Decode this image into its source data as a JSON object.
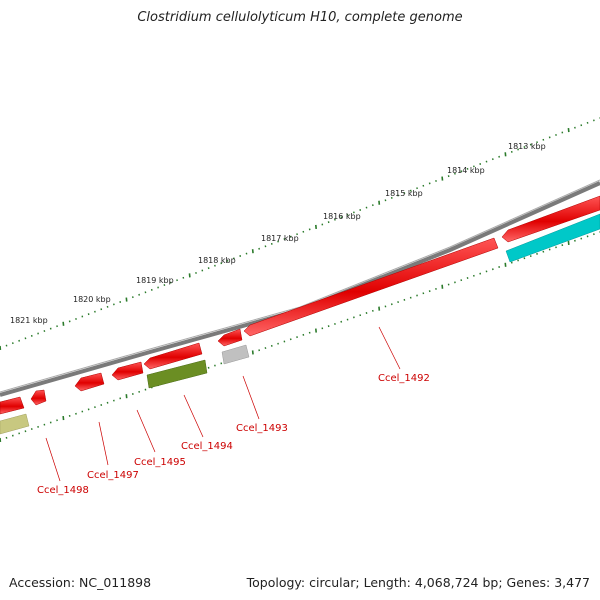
{
  "title": "Clostridium cellulolyticum H10, complete genome",
  "accession": "Accession: NC_011898",
  "summary": "Topology: circular; Length: 4,068,724 bp; Genes: 3,477",
  "ruler_labels": [
    "1813 kbp",
    "1814 kbp",
    "1815 kbp",
    "1816 kbp",
    "1817 kbp",
    "1818 kbp",
    "1819 kbp",
    "1820 kbp",
    "1821 kbp"
  ],
  "genes": [
    {
      "name": "Ccel_1492",
      "color": "#dd0000",
      "strand": "reverse",
      "labeled": true
    },
    {
      "name": "Ccel_1493",
      "color": "#dd0000",
      "strand": "reverse",
      "labeled": true
    },
    {
      "name": "Ccel_1494",
      "color": "#c0c0c0",
      "strand": "forward",
      "labeled": true
    },
    {
      "name": "Ccel_1495",
      "color": "#dd0000",
      "strand": "reverse",
      "labeled": true
    },
    {
      "name": "Ccel_1497",
      "color": "#dd0000",
      "strand": "reverse",
      "labeled": true
    },
    {
      "name": "Ccel_1498",
      "color": "#dd0000",
      "strand": "reverse",
      "labeled": true
    }
  ],
  "colors": {
    "backbone": "#7a7a7a",
    "cds": "#dd0000",
    "ruler": "#2a7a2a",
    "rna": "#00c8c8",
    "misc": "#6b8e23",
    "pseudo": "#c0c0c0",
    "other": "#c8c880",
    "label": "#cc0000"
  }
}
